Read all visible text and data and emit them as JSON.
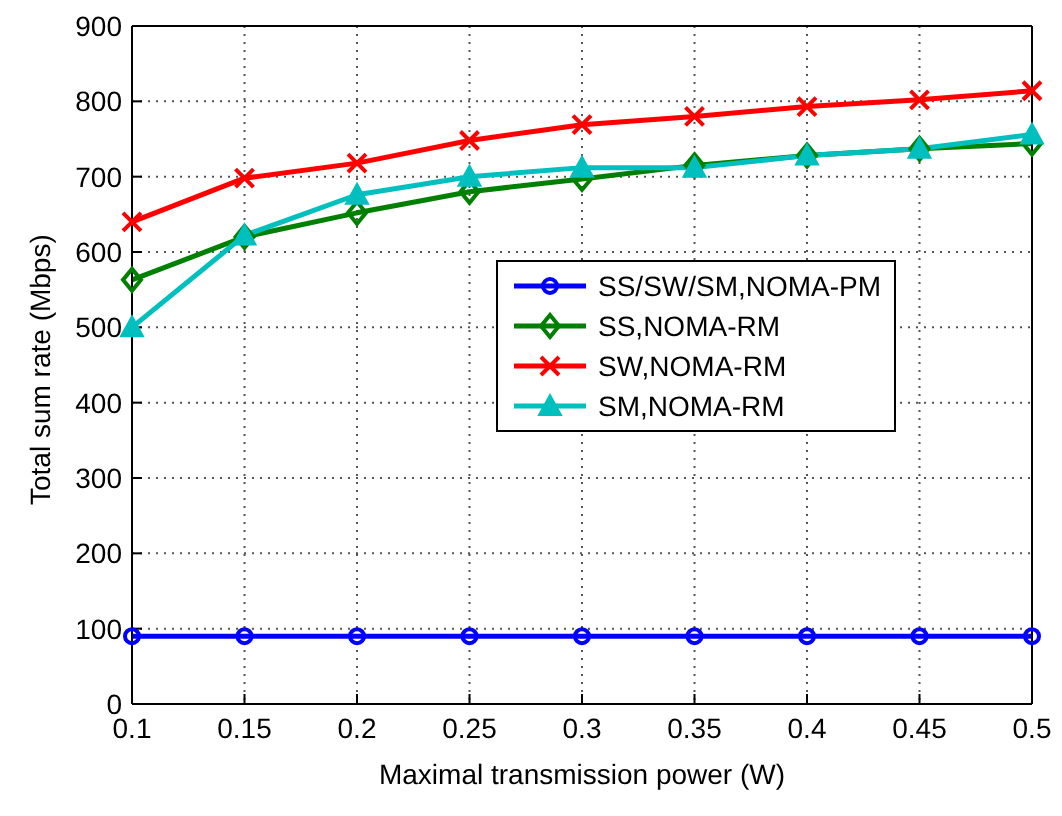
{
  "chart_data": {
    "type": "line",
    "xlabel": "Maximal transmission power (W)",
    "ylabel": "Total sum rate (Mbps)",
    "x": [
      0.1,
      0.15,
      0.2,
      0.25,
      0.3,
      0.35,
      0.4,
      0.45,
      0.5
    ],
    "series": [
      {
        "name": "SS/SW/SM,NOMA-PM",
        "color": "#0000ff",
        "marker": "circle",
        "values": [
          90,
          90,
          90,
          90,
          90,
          90,
          90,
          90,
          90
        ]
      },
      {
        "name": "SS,NOMA-RM",
        "color": "#008000",
        "marker": "diamond",
        "values": [
          563,
          620,
          652,
          680,
          697,
          715,
          728,
          737,
          744
        ]
      },
      {
        "name": "SW,NOMA-RM",
        "color": "#ff0000",
        "marker": "cross",
        "values": [
          640,
          698,
          718,
          748,
          769,
          780,
          793,
          802,
          814
        ]
      },
      {
        "name": "SM,NOMA-RM",
        "color": "#00bfbf",
        "marker": "triangle",
        "values": [
          500,
          622,
          676,
          700,
          712,
          712,
          728,
          737,
          756
        ]
      }
    ],
    "xlim": [
      0.1,
      0.5
    ],
    "xticks": [
      0.1,
      0.15,
      0.2,
      0.25,
      0.3,
      0.35,
      0.4,
      0.45,
      0.5
    ],
    "ylim": [
      0,
      900
    ],
    "yticks": [
      0,
      100,
      200,
      300,
      400,
      500,
      600,
      700,
      800,
      900
    ],
    "grid": true,
    "legend": "right",
    "line_style": "solid"
  }
}
